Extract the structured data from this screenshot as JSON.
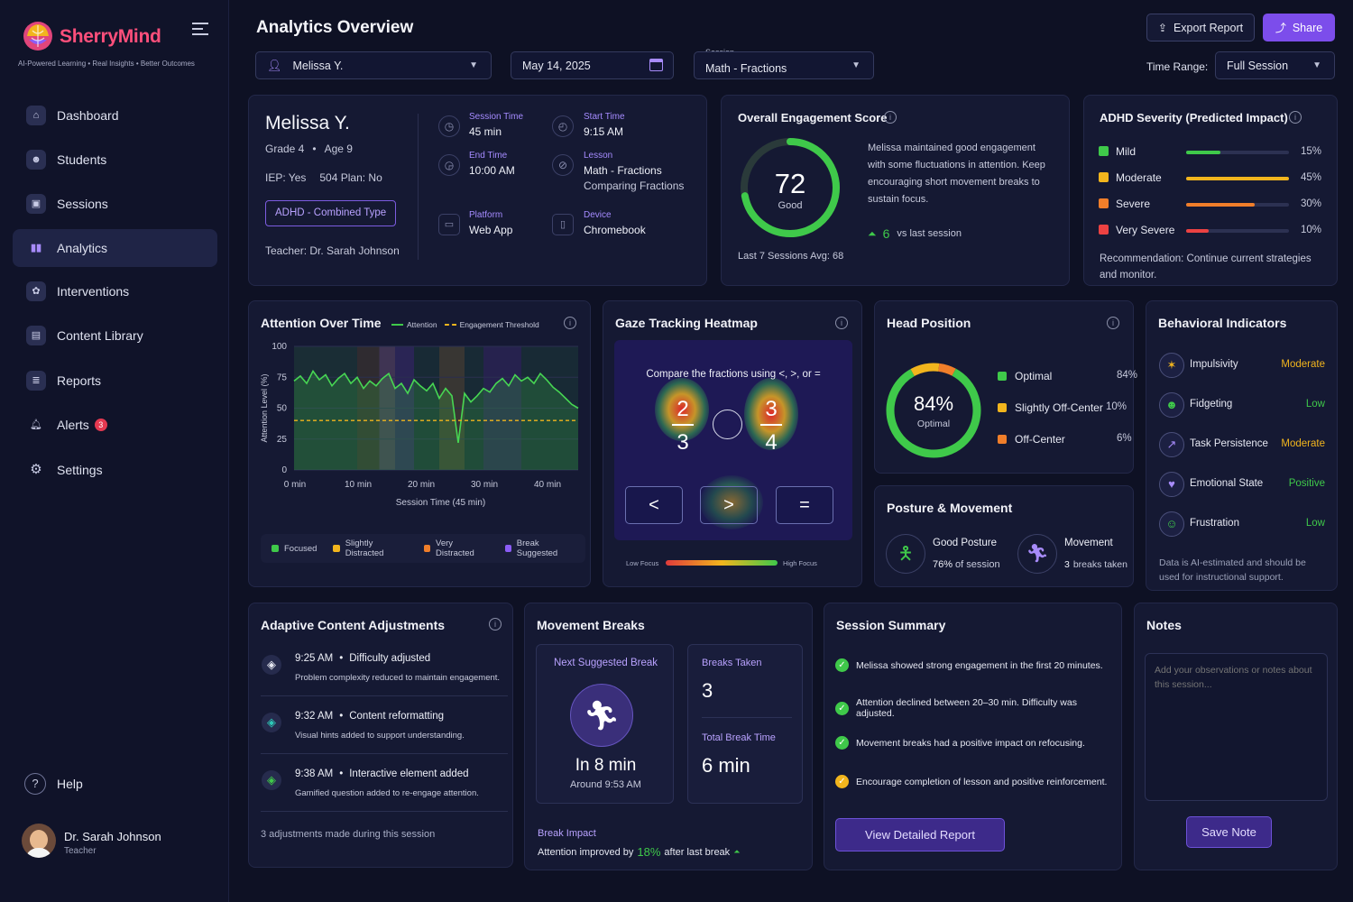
{
  "brand": {
    "name": "SherryMind",
    "tagline": "AI-Powered Learning • Real Insights • Better Outcomes"
  },
  "nav": [
    {
      "label": "Dashboard",
      "icon": "home-icon"
    },
    {
      "label": "Students",
      "icon": "users-icon"
    },
    {
      "label": "Sessions",
      "icon": "sessions-icon"
    },
    {
      "label": "Analytics",
      "icon": "analytics-icon"
    },
    {
      "label": "Interventions",
      "icon": "interventions-icon"
    },
    {
      "label": "Content Library",
      "icon": "library-icon"
    },
    {
      "label": "Reports",
      "icon": "reports-icon"
    },
    {
      "label": "Alerts",
      "icon": "bell-icon",
      "badge": "3"
    },
    {
      "label": "Settings",
      "icon": "gear-icon"
    }
  ],
  "help": "Help",
  "user": {
    "name": "Dr. Sarah Johnson",
    "role": "Teacher"
  },
  "header": {
    "title": "Analytics Overview",
    "export": "Export Report",
    "share": "Share"
  },
  "filters": {
    "student": "Melissa Y.",
    "date": "May 14, 2025",
    "session_label": "Session",
    "session": "Math - Fractions",
    "time_range_label": "Time Range:",
    "time_range": "Full Session"
  },
  "student": {
    "name": "Melissa Y.",
    "grade": "Grade 4",
    "age": "Age 9",
    "iep": "IEP: Yes",
    "plan504": "504 Plan: No",
    "tag": "ADHD - Combined Type",
    "teacher": "Teacher: Dr. Sarah Johnson",
    "session_time_label": "Session Time",
    "session_time": "45 min",
    "start_time_label": "Start Time",
    "start_time": "9:15 AM",
    "end_time_label": "End Time",
    "end_time": "10:00 AM",
    "lesson_label": "Lesson",
    "lesson": "Math - Fractions",
    "lesson_sub": "Comparing Fractions",
    "platform_label": "Platform",
    "platform": "Web App",
    "device_label": "Device",
    "device": "Chromebook"
  },
  "engagement": {
    "title": "Overall Engagement Score",
    "score": "72",
    "score_value": 72,
    "rating": "Good",
    "description": "Melissa maintained good engagement with some fluctuations in attention. Keep encouraging short movement breaks to sustain focus.",
    "delta": "6",
    "delta_label": "vs last session",
    "avg": "Last 7 Sessions Avg: 68"
  },
  "adhd": {
    "title": "ADHD Severity (Predicted Impact)",
    "levels": [
      {
        "label": "Mild",
        "pct": "15%",
        "value": 15,
        "color": "#3fc94a"
      },
      {
        "label": "Moderate",
        "pct": "45%",
        "value": 45,
        "color": "#f2b51d"
      },
      {
        "label": "Severe",
        "pct": "30%",
        "value": 30,
        "color": "#f07e2a"
      },
      {
        "label": "Very Severe",
        "pct": "10%",
        "value": 10,
        "color": "#ec4242"
      }
    ],
    "recommendation": "Recommendation: Continue current strategies and monitor."
  },
  "attention": {
    "title": "Attention Over Time",
    "legend_attention": "Attention",
    "legend_threshold": "Engagement Threshold",
    "legend_states": [
      {
        "label": "Focused",
        "color": "#3fc94a"
      },
      {
        "label": "Slightly Distracted",
        "color": "#f2b51d"
      },
      {
        "label": "Very Distracted",
        "color": "#f07e2a"
      },
      {
        "label": "Break Suggested",
        "color": "#8b5cf6"
      }
    ]
  },
  "chart_data": {
    "type": "line",
    "title": "Attention Over Time",
    "xlabel": "Session Time (45 min)",
    "ylabel": "Attention Level (%)",
    "xlim": [
      0,
      45
    ],
    "ylim": [
      0,
      100
    ],
    "xticks": [
      "0 min",
      "10 min",
      "20 min",
      "30 min",
      "40 min"
    ],
    "yticks": [
      "0",
      "25",
      "50",
      "75",
      "100"
    ],
    "series": [
      {
        "name": "Attention",
        "x": [
          0,
          1,
          2,
          3,
          4,
          5,
          6,
          7,
          8,
          9,
          10,
          11,
          12,
          13,
          14,
          15,
          16,
          17,
          18,
          19,
          20,
          21,
          22,
          23,
          24,
          25,
          26,
          27,
          28,
          29,
          30,
          31,
          32,
          33,
          34,
          35,
          36,
          37,
          38,
          39,
          40,
          41,
          42,
          43,
          44,
          45
        ],
        "y": [
          72,
          76,
          70,
          80,
          73,
          77,
          68,
          74,
          78,
          70,
          75,
          66,
          72,
          68,
          74,
          78,
          66,
          70,
          62,
          73,
          68,
          64,
          70,
          58,
          66,
          60,
          22,
          62,
          55,
          60,
          66,
          63,
          70,
          74,
          68,
          77,
          72,
          75,
          70,
          78,
          73,
          67,
          63,
          58,
          53,
          50
        ]
      },
      {
        "name": "Engagement Threshold",
        "x": [
          0,
          45
        ],
        "y": [
          40,
          40
        ]
      }
    ]
  },
  "gaze": {
    "title": "Gaze Tracking Heatmap",
    "prompt": "Compare the fractions using <, >, or =",
    "frac1_num": "2",
    "frac1_den": "3",
    "frac2_num": "3",
    "frac2_den": "4",
    "btn_lt": "<",
    "btn_gt": ">",
    "btn_eq": "=",
    "low": "Low Focus",
    "high": "High Focus"
  },
  "head": {
    "title": "Head Position",
    "pct": "84%",
    "pct_label": "Optimal",
    "items": [
      {
        "label": "Optimal",
        "pct": "84%",
        "value": 84,
        "color": "#3fc94a"
      },
      {
        "label": "Slightly Off-Center",
        "pct": "10%",
        "value": 10,
        "color": "#f2b51d"
      },
      {
        "label": "Off-Center",
        "pct": "6%",
        "value": 6,
        "color": "#f07e2a"
      }
    ]
  },
  "posture": {
    "title": "Posture & Movement",
    "good_label": "Good Posture",
    "good_pct": "76%",
    "good_suffix": "of session",
    "move_label": "Movement",
    "move_count": "3",
    "move_suffix": "breaks taken"
  },
  "behavior": {
    "title": "Behavioral Indicators",
    "items": [
      {
        "label": "Impulsivity",
        "value": "Moderate",
        "color": "#f2b51d"
      },
      {
        "label": "Fidgeting",
        "value": "Low",
        "color": "#3fc94a"
      },
      {
        "label": "Task Persistence",
        "value": "Moderate",
        "color": "#f2b51d"
      },
      {
        "label": "Emotional State",
        "value": "Positive",
        "color": "#3fc94a"
      },
      {
        "label": "Frustration",
        "value": "Low",
        "color": "#3fc94a"
      }
    ],
    "note": "Data is AI-estimated and should be used for instructional support."
  },
  "adaptive": {
    "title": "Adaptive Content Adjustments",
    "items": [
      {
        "time": "9:25 AM",
        "title": "Difficulty adjusted",
        "desc": "Problem complexity reduced to maintain engagement."
      },
      {
        "time": "9:32 AM",
        "title": "Content reformatting",
        "desc": "Visual hints added to support understanding."
      },
      {
        "time": "9:38 AM",
        "title": "Interactive element added",
        "desc": "Gamified question added to re-engage attention."
      }
    ],
    "footer": "3 adjustments made during this session"
  },
  "breaks": {
    "title": "Movement Breaks",
    "next_label": "Next Suggested Break",
    "next_in": "In 8 min",
    "next_at": "Around 9:53 AM",
    "taken_label": "Breaks Taken",
    "taken": "3",
    "total_label": "Total Break Time",
    "total": "6 min",
    "impact_label": "Break Impact",
    "impact_prefix": "Attention improved by",
    "impact_value": "18%",
    "impact_suffix": "after last break"
  },
  "summary": {
    "title": "Session Summary",
    "items": [
      {
        "text": "Melissa showed strong engagement in the first 20 minutes.",
        "color": "#3fc94a"
      },
      {
        "text": "Attention declined between 20–30 min. Difficulty was adjusted.",
        "color": "#3fc94a"
      },
      {
        "text": "Movement breaks had a positive impact on refocusing.",
        "color": "#3fc94a"
      },
      {
        "text": "Encourage completion of lesson and positive reinforcement.",
        "color": "#f2b51d"
      }
    ],
    "button": "View Detailed Report"
  },
  "notes": {
    "title": "Notes",
    "placeholder": "Add your observations or notes about this session...",
    "button": "Save Note"
  }
}
